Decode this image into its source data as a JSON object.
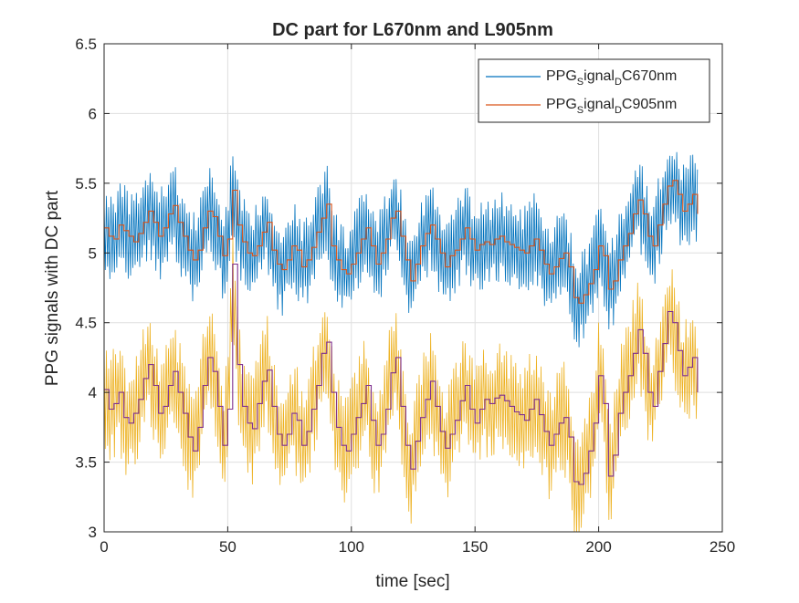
{
  "colors": {
    "s670_raw": "#0072BD",
    "s670_dc": "#D95319",
    "s905_raw": "#EDB120",
    "s905_dc": "#7E2F8E",
    "grid": "#dfdfdf",
    "axis": "#262626"
  },
  "chart_data": {
    "type": "line",
    "title": "DC part for L670nm and L905nm",
    "xlabel": "time [sec]",
    "ylabel": "PPG signals with DC part",
    "xlim": [
      0,
      250
    ],
    "ylim": [
      3,
      6.5
    ],
    "xticks": [
      0,
      50,
      100,
      150,
      200,
      250
    ],
    "yticks": [
      3,
      3.5,
      4,
      4.5,
      5,
      5.5,
      6,
      6.5
    ],
    "xtick_labels": [
      "0",
      "50",
      "100",
      "150",
      "200",
      "250"
    ],
    "ytick_labels": [
      "3",
      "3.5",
      "4",
      "4.5",
      "5",
      "5.5",
      "6",
      "6.5"
    ],
    "grid": true,
    "legend_position": "top-right",
    "legend": [
      {
        "base": "PPG",
        "sub1": "S",
        "mid": "ignal",
        "sub2": "D",
        "tail": "C670nm",
        "color_key": "s670_raw"
      },
      {
        "base": "PPG",
        "sub1": "S",
        "mid": "ignal",
        "sub2": "D",
        "tail": "C905nm",
        "color_key": "s670_dc"
      }
    ],
    "oscillation": {
      "period_sec": 0.93,
      "amp_670": 0.28,
      "amp_905": 0.34
    },
    "series": [
      {
        "label": "DC 670nm",
        "color_key": "s670_dc",
        "x": [
          0,
          2,
          4,
          6,
          8,
          10,
          12,
          14,
          16,
          18,
          20,
          22,
          24,
          26,
          28,
          30,
          32,
          34,
          36,
          38,
          40,
          42,
          44,
          46,
          48,
          50,
          52,
          54,
          56,
          58,
          60,
          62,
          64,
          66,
          68,
          70,
          72,
          74,
          76,
          78,
          80,
          82,
          84,
          86,
          88,
          90,
          92,
          94,
          96,
          98,
          100,
          102,
          104,
          106,
          108,
          110,
          112,
          114,
          116,
          118,
          120,
          122,
          124,
          126,
          128,
          130,
          132,
          134,
          136,
          138,
          140,
          142,
          144,
          146,
          148,
          150,
          152,
          154,
          156,
          158,
          160,
          162,
          164,
          166,
          168,
          170,
          172,
          174,
          176,
          178,
          180,
          182,
          184,
          186,
          188,
          190,
          192,
          194,
          196,
          198,
          200,
          202,
          204,
          206,
          208,
          210,
          212,
          214,
          216,
          218,
          220,
          222,
          224,
          226,
          228,
          230,
          232,
          234,
          236,
          238,
          240
        ],
        "y": [
          5.18,
          5.12,
          5.1,
          5.2,
          5.16,
          5.12,
          5.08,
          5.14,
          5.22,
          5.3,
          5.22,
          5.12,
          5.18,
          5.28,
          5.34,
          5.22,
          5.12,
          5.02,
          4.95,
          5.02,
          5.18,
          5.3,
          5.26,
          5.12,
          4.98,
          5.1,
          5.45,
          5.2,
          5.08,
          5.0,
          4.98,
          5.05,
          5.15,
          5.22,
          5.02,
          4.92,
          4.88,
          4.95,
          5.05,
          5.02,
          4.9,
          4.95,
          5.04,
          5.15,
          5.25,
          5.35,
          5.05,
          4.95,
          4.88,
          4.85,
          4.92,
          5.0,
          5.1,
          5.18,
          5.05,
          4.92,
          5.0,
          5.1,
          5.25,
          5.3,
          5.12,
          4.95,
          4.8,
          4.92,
          5.05,
          5.14,
          5.2,
          5.1,
          5.0,
          4.9,
          4.98,
          5.02,
          5.1,
          5.18,
          5.1,
          5.02,
          5.06,
          5.08,
          5.06,
          5.1,
          5.12,
          5.08,
          5.06,
          5.04,
          5.02,
          5.0,
          5.05,
          5.1,
          5.02,
          4.92,
          4.85,
          4.9,
          4.96,
          5.0,
          4.9,
          4.68,
          4.64,
          4.7,
          4.78,
          4.88,
          5.05,
          4.98,
          4.74,
          4.8,
          4.95,
          5.05,
          5.14,
          5.28,
          5.38,
          5.28,
          5.12,
          5.05,
          5.2,
          5.35,
          5.48,
          5.52,
          5.42,
          5.3,
          5.35,
          5.42,
          5.28
        ]
      },
      {
        "label": "DC 905nm",
        "color_key": "s905_dc",
        "x": [
          0,
          2,
          4,
          6,
          8,
          10,
          12,
          14,
          16,
          18,
          20,
          22,
          24,
          26,
          28,
          30,
          32,
          34,
          36,
          38,
          40,
          42,
          44,
          46,
          48,
          50,
          52,
          54,
          56,
          58,
          60,
          62,
          64,
          66,
          68,
          70,
          72,
          74,
          76,
          78,
          80,
          82,
          84,
          86,
          88,
          90,
          92,
          94,
          96,
          98,
          100,
          102,
          104,
          106,
          108,
          110,
          112,
          114,
          116,
          118,
          120,
          122,
          124,
          126,
          128,
          130,
          132,
          134,
          136,
          138,
          140,
          142,
          144,
          146,
          148,
          150,
          152,
          154,
          156,
          158,
          160,
          162,
          164,
          166,
          168,
          170,
          172,
          174,
          176,
          178,
          180,
          182,
          184,
          186,
          188,
          190,
          192,
          194,
          196,
          198,
          200,
          202,
          204,
          206,
          208,
          210,
          212,
          214,
          216,
          218,
          220,
          222,
          224,
          226,
          228,
          230,
          232,
          234,
          236,
          238,
          240
        ],
        "y": [
          4.02,
          3.88,
          3.92,
          4.0,
          3.82,
          3.78,
          3.85,
          3.95,
          4.1,
          4.2,
          4.05,
          3.85,
          3.9,
          4.05,
          4.15,
          4.0,
          3.85,
          3.68,
          3.58,
          3.75,
          4.05,
          4.25,
          4.15,
          3.9,
          3.62,
          3.88,
          4.92,
          4.2,
          3.9,
          3.78,
          3.74,
          3.92,
          4.08,
          4.16,
          3.9,
          3.7,
          3.62,
          3.7,
          3.85,
          3.8,
          3.62,
          3.72,
          3.88,
          4.05,
          4.28,
          4.36,
          4.0,
          3.75,
          3.62,
          3.58,
          3.7,
          3.82,
          3.92,
          4.05,
          3.8,
          3.62,
          3.7,
          3.88,
          4.14,
          4.25,
          3.9,
          3.62,
          3.45,
          3.65,
          3.82,
          3.95,
          4.08,
          3.9,
          3.72,
          3.6,
          3.7,
          3.8,
          3.94,
          4.05,
          3.88,
          3.78,
          3.88,
          3.95,
          3.92,
          3.96,
          3.98,
          3.94,
          3.9,
          3.86,
          3.84,
          3.8,
          3.88,
          3.95,
          3.84,
          3.72,
          3.62,
          3.7,
          3.78,
          3.82,
          3.68,
          3.36,
          3.34,
          3.42,
          3.58,
          3.78,
          4.12,
          3.92,
          3.4,
          3.55,
          3.85,
          4.0,
          4.12,
          4.28,
          4.45,
          4.28,
          4.0,
          3.9,
          4.15,
          4.35,
          4.58,
          4.5,
          4.3,
          4.12,
          4.18,
          4.25,
          4.0
        ]
      }
    ]
  }
}
